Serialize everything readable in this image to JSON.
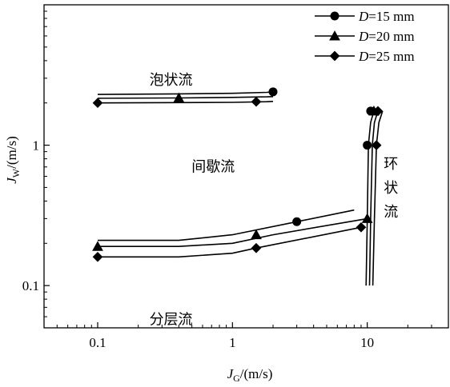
{
  "chart_data": {
    "type": "line",
    "xlabel": {
      "main": "J",
      "sub": "G",
      "rest": "/(m/s)"
    },
    "ylabel": {
      "main": "J",
      "sub": "W",
      "rest": "/(m/s)"
    },
    "x_scale": "log",
    "y_scale": "log",
    "xlim": [
      0.04,
      40
    ],
    "ylim": [
      0.05,
      10
    ],
    "x_ticks": [
      {
        "value": 0.1,
        "label": "0.1"
      },
      {
        "value": 1,
        "label": "1"
      },
      {
        "value": 10,
        "label": "10"
      }
    ],
    "y_ticks": [
      {
        "value": 0.1,
        "label": "0.1"
      },
      {
        "value": 1,
        "label": "1"
      }
    ],
    "grid": false,
    "legend_position": "top-right",
    "legend": [
      {
        "series": "d15",
        "var": "D",
        "rest": "=15 mm",
        "marker": "circle"
      },
      {
        "series": "d20",
        "var": "D",
        "rest": "=20 mm",
        "marker": "triangle"
      },
      {
        "series": "d25",
        "var": "D",
        "rest": "=25 mm",
        "marker": "diamond"
      }
    ],
    "region_labels": [
      {
        "text": "泡状流",
        "x": 0.35,
        "y": 2.7
      },
      {
        "text": "间歇流",
        "x": 0.72,
        "y": 0.65
      },
      {
        "text": "分层流",
        "x": 0.35,
        "y": 0.053
      },
      {
        "text": "环",
        "x": 15,
        "y": 0.68
      },
      {
        "text": "状",
        "x": 15,
        "y": 0.46
      },
      {
        "text": "流",
        "x": 15,
        "y": 0.31
      }
    ],
    "series": [
      {
        "id": "d15",
        "marker": "circle",
        "lines": [
          {
            "x": [
              0.1,
              0.4,
              1.0,
              1.8,
              2.0
            ],
            "y": [
              2.3,
              2.32,
              2.34,
              2.38,
              2.4
            ]
          },
          {
            "x": [
              0.1,
              0.4,
              1.0,
              3.0,
              8.0
            ],
            "y": [
              0.21,
              0.21,
              0.23,
              0.285,
              0.345
            ]
          },
          {
            "x": [
              9.8,
              10.0,
              10.2,
              10.6,
              11.2
            ],
            "y": [
              0.1,
              0.3,
              1.0,
              1.45,
              1.75
            ]
          }
        ],
        "markers": [
          {
            "x": 2.0,
            "y": 2.4
          },
          {
            "x": 3.0,
            "y": 0.285
          },
          {
            "x": 10.0,
            "y": 1.0
          },
          {
            "x": 10.6,
            "y": 1.75
          }
        ]
      },
      {
        "id": "d20",
        "marker": "triangle",
        "lines": [
          {
            "x": [
              0.1,
              0.4,
              1.0,
              1.8,
              2.0
            ],
            "y": [
              2.16,
              2.17,
              2.19,
              2.21,
              2.22
            ]
          },
          {
            "x": [
              0.1,
              0.4,
              1.0,
              2.0,
              10.0
            ],
            "y": [
              0.19,
              0.19,
              0.2,
              0.23,
              0.3
            ]
          },
          {
            "x": [
              10.4,
              10.6,
              10.9,
              11.3,
              12.0
            ],
            "y": [
              0.1,
              0.3,
              1.0,
              1.45,
              1.75
            ]
          }
        ],
        "markers": [
          {
            "x": 0.1,
            "y": 0.19
          },
          {
            "x": 0.4,
            "y": 2.17
          },
          {
            "x": 1.5,
            "y": 0.23
          },
          {
            "x": 10.0,
            "y": 0.3
          },
          {
            "x": 11.2,
            "y": 1.75
          }
        ]
      },
      {
        "id": "d25",
        "marker": "diamond",
        "lines": [
          {
            "x": [
              0.1,
              0.4,
              1.0,
              1.8,
              2.0
            ],
            "y": [
              2.0,
              2.01,
              2.02,
              2.04,
              2.05
            ]
          },
          {
            "x": [
              0.1,
              0.4,
              1.0,
              1.5,
              9.0
            ],
            "y": [
              0.16,
              0.16,
              0.17,
              0.185,
              0.26
            ]
          },
          {
            "x": [
              11.0,
              11.3,
              11.7,
              12.2,
              13.0
            ],
            "y": [
              0.1,
              0.3,
              1.0,
              1.45,
              1.75
            ]
          }
        ],
        "markers": [
          {
            "x": 0.1,
            "y": 2.0
          },
          {
            "x": 0.1,
            "y": 0.16
          },
          {
            "x": 1.5,
            "y": 2.04
          },
          {
            "x": 1.5,
            "y": 0.185
          },
          {
            "x": 9.0,
            "y": 0.26
          },
          {
            "x": 11.7,
            "y": 1.0
          },
          {
            "x": 12.0,
            "y": 1.75
          }
        ]
      }
    ]
  }
}
